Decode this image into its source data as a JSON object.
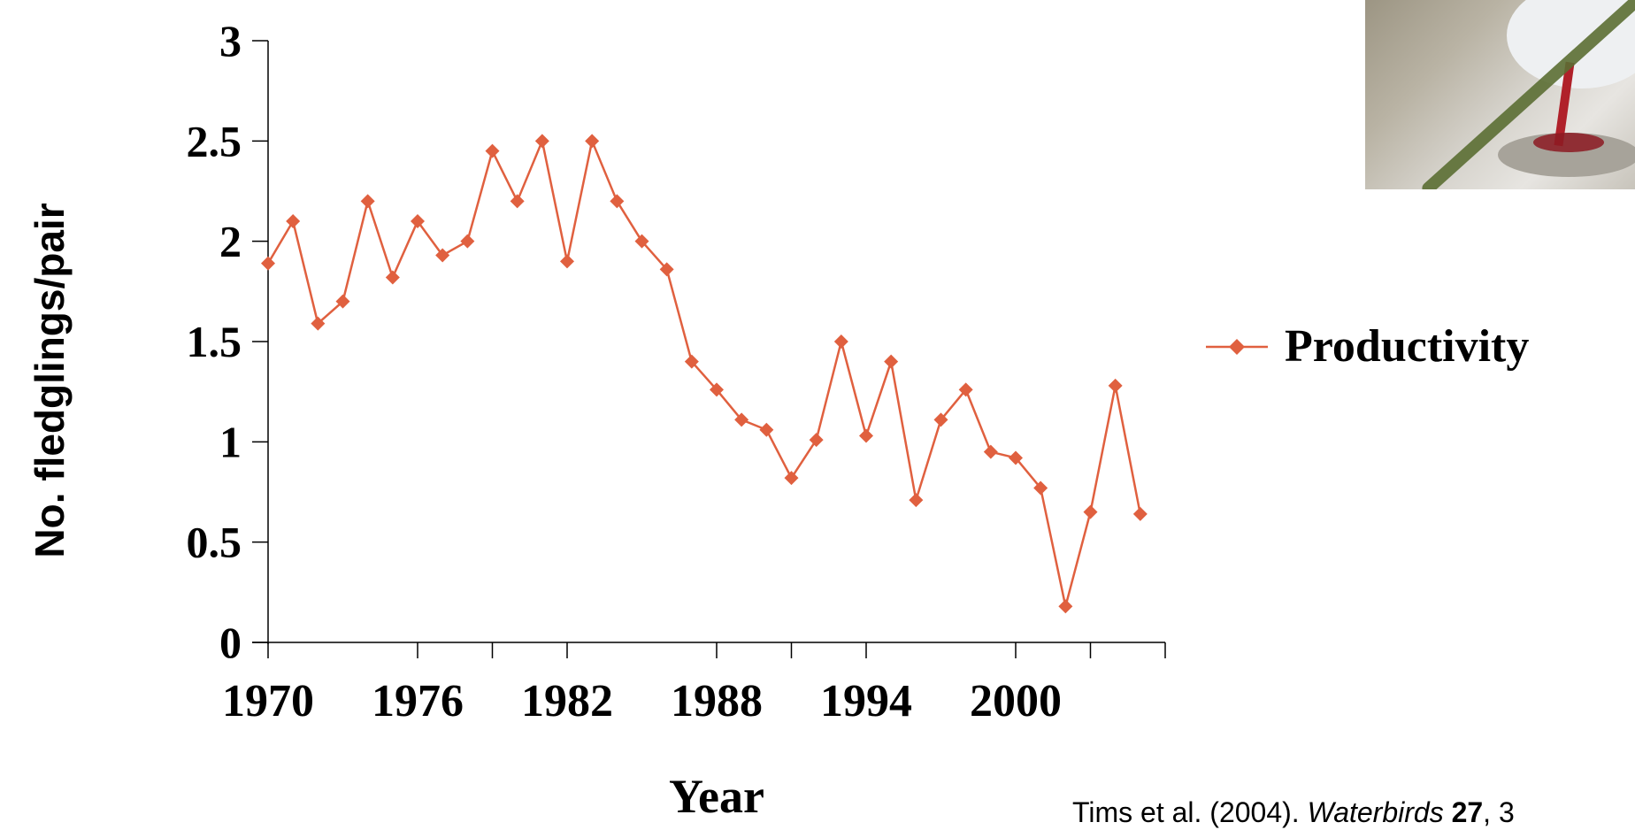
{
  "chart_data": {
    "type": "line",
    "xlabel": "Year",
    "ylabel": "No. fledglings/pair",
    "ylim": [
      0,
      3
    ],
    "yticks": [
      "0",
      "0.5",
      "1",
      "1.5",
      "2",
      "2.5",
      "3"
    ],
    "xlim": [
      1970,
      2006
    ],
    "xticks": [
      "1970",
      "1976",
      "1982",
      "1988",
      "1994",
      "2000"
    ],
    "legend_position": "right",
    "series": [
      {
        "name": "Productivity",
        "color": "#e0603f",
        "x": [
          1970,
          1971,
          1972,
          1973,
          1974,
          1975,
          1976,
          1977,
          1978,
          1979,
          1980,
          1981,
          1982,
          1983,
          1984,
          1985,
          1986,
          1987,
          1988,
          1989,
          1990,
          1991,
          1992,
          1993,
          1994,
          1995,
          1996,
          1997,
          1998,
          1999,
          2000,
          2001,
          2002,
          2003,
          2004,
          2005
        ],
        "values": [
          1.89,
          2.1,
          1.59,
          1.7,
          2.2,
          1.82,
          2.1,
          1.93,
          2.0,
          2.45,
          2.2,
          2.5,
          1.9,
          2.5,
          2.2,
          2.0,
          1.86,
          1.4,
          1.26,
          1.11,
          1.06,
          0.82,
          1.01,
          1.5,
          1.03,
          1.4,
          0.71,
          1.11,
          1.26,
          0.95,
          0.92,
          0.77,
          0.18,
          0.65,
          1.28,
          0.64
        ]
      }
    ]
  },
  "citation": {
    "authors_year": "Tims et al. (2004). ",
    "journal": "Waterbirds",
    "volume": " 27",
    "rest": ", 3"
  },
  "photo": {
    "icon": "tern-photo-icon"
  }
}
